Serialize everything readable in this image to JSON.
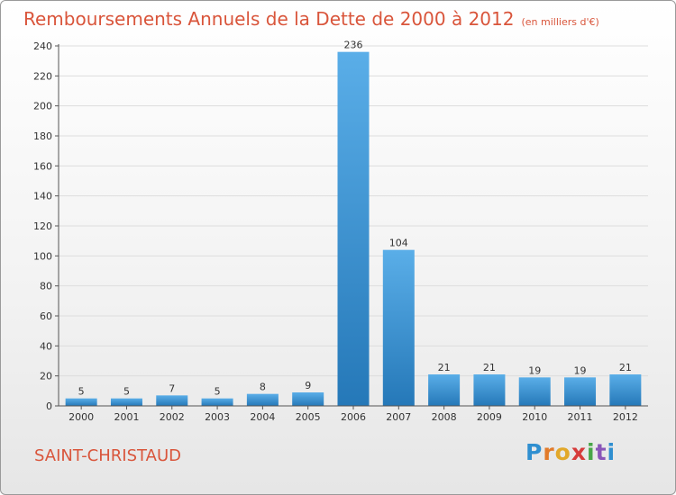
{
  "header": {
    "title": "Remboursements Annuels de la Dette de 2000 à 2012",
    "subtitle": "(en milliers d'€)"
  },
  "footer": {
    "commune": "SAINT-CHRISTAUD",
    "logo_text": "Proxiti"
  },
  "colors": {
    "title": "#d9553b",
    "bar_light": "#5aaee8",
    "bar_dark": "#2578b8",
    "grid": "#dddddd"
  },
  "chart_data": {
    "type": "bar",
    "categories": [
      "2000",
      "2001",
      "2002",
      "2003",
      "2004",
      "2005",
      "2006",
      "2007",
      "2008",
      "2009",
      "2010",
      "2011",
      "2012"
    ],
    "values": [
      5,
      5,
      7,
      5,
      8,
      9,
      236,
      104,
      21,
      21,
      19,
      19,
      21
    ],
    "title": "Remboursements Annuels de la Dette de 2000 à 2012",
    "subtitle": "(en milliers d'€)",
    "ylim": [
      0,
      240
    ],
    "yticks": [
      0,
      20,
      40,
      60,
      80,
      100,
      120,
      140,
      160,
      180,
      200,
      220,
      240
    ],
    "grid": true
  }
}
